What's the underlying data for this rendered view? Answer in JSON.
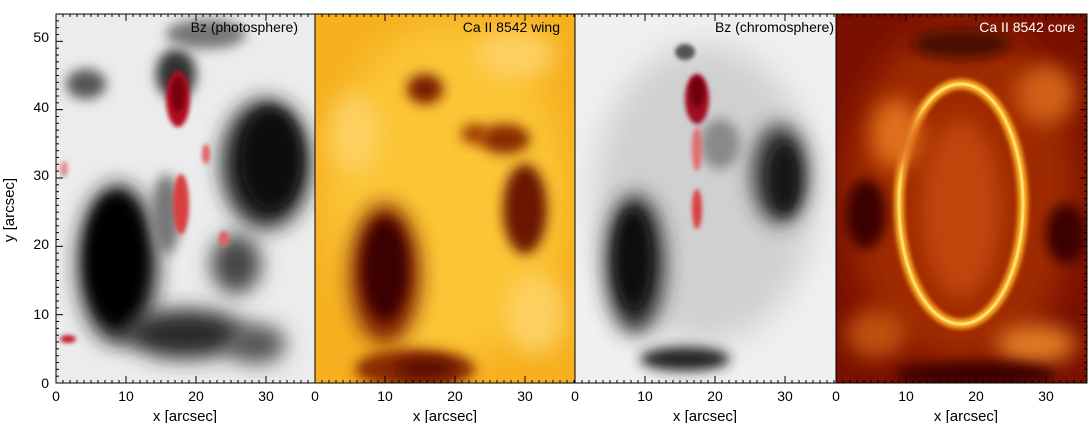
{
  "figure": {
    "y_axis_label": "y [arcsec]",
    "y_ticks": [
      "0",
      "10",
      "20",
      "30",
      "40",
      "50"
    ],
    "x_ticks": [
      "0",
      "10",
      "20",
      "30"
    ],
    "panels": [
      {
        "title": "Bz (photosphere)",
        "xlabel": "x [arcsec]",
        "colormap": "grey-red"
      },
      {
        "title": "Ca II 8542 wing",
        "xlabel": "x [arcsec]",
        "colormap": "orange"
      },
      {
        "title": "Bz (chromosphere)",
        "xlabel": "x [arcsec]",
        "colormap": "grey-red"
      },
      {
        "title": "Ca II 8542 core",
        "xlabel": "x [arcsec]",
        "colormap": "dark-red"
      }
    ]
  },
  "chart_data": {
    "type": "heatmap",
    "panel_count": 4,
    "xlim": [
      0,
      37
    ],
    "ylim": [
      0,
      54
    ],
    "xlabel": "x [arcsec]",
    "ylabel": "y [arcsec]",
    "x_ticks": [
      0,
      10,
      20,
      30
    ],
    "y_ticks": [
      0,
      10,
      20,
      30,
      40,
      50
    ],
    "grid": false,
    "features": {
      "bz_negative_umbra_left_center": [
        9,
        20
      ],
      "bz_negative_umbra_right_center": [
        30,
        33
      ],
      "bz_positive_plage_top": [
        17,
        42
      ],
      "bz_positive_plage_mid": [
        18,
        26
      ]
    }
  }
}
